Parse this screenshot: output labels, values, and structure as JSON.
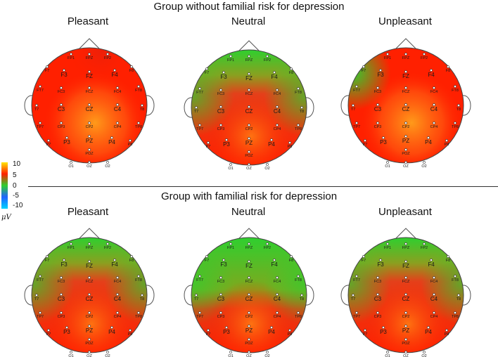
{
  "groups": [
    {
      "title": "Group without familial risk for depression",
      "maps": [
        {
          "condition": "Pleasant",
          "pattern": "red-posterior-hot"
        },
        {
          "condition": "Neutral",
          "pattern": "green-frontal-red-posterior"
        },
        {
          "condition": "Unpleasant",
          "pattern": "red-with-green-left"
        }
      ]
    },
    {
      "title": "Group with familial risk for depression",
      "maps": [
        {
          "condition": "Pleasant",
          "pattern": "green-frontal-red-posterior"
        },
        {
          "condition": "Neutral",
          "pattern": "green-frontal-large-red-posterior"
        },
        {
          "condition": "Unpleasant",
          "pattern": "green-frontal-red-posterior"
        }
      ]
    }
  ],
  "color_scale": {
    "ticks": [
      "10",
      "5",
      "0",
      "-5",
      "-10"
    ],
    "unit": "μV",
    "colors": {
      "high": "#ffe600",
      "mid_high": "#ff2000",
      "zero": "#2fcf2f",
      "mid_low": "#1f64ff",
      "low": "#00d4ff"
    }
  },
  "electrodes": [
    {
      "label": "FP1",
      "big": false
    },
    {
      "label": "FPZ",
      "big": false
    },
    {
      "label": "FP2",
      "big": false
    },
    {
      "label": "F7",
      "big": false
    },
    {
      "label": "F3",
      "big": true
    },
    {
      "label": "FZ",
      "big": true
    },
    {
      "label": "F4",
      "big": true
    },
    {
      "label": "F8",
      "big": false
    },
    {
      "label": "FC3",
      "big": false
    },
    {
      "label": "FCZ",
      "big": false
    },
    {
      "label": "FC4",
      "big": false
    },
    {
      "label": "FT7",
      "big": false
    },
    {
      "label": "FT8",
      "big": false
    },
    {
      "label": "T7",
      "big": false
    },
    {
      "label": "C3",
      "big": true
    },
    {
      "label": "CZ",
      "big": true
    },
    {
      "label": "C4",
      "big": true
    },
    {
      "label": "T8",
      "big": false
    },
    {
      "label": "CP3",
      "big": false
    },
    {
      "label": "CP2",
      "big": false
    },
    {
      "label": "CP4",
      "big": false
    },
    {
      "label": "TP7",
      "big": false
    },
    {
      "label": "TP8",
      "big": false
    },
    {
      "label": "P7",
      "big": false
    },
    {
      "label": "P3",
      "big": true
    },
    {
      "label": "PZ",
      "big": true
    },
    {
      "label": "P4",
      "big": true
    },
    {
      "label": "P8",
      "big": false
    },
    {
      "label": "POZ",
      "big": false
    },
    {
      "label": "O1",
      "big": false
    },
    {
      "label": "OZ",
      "big": false
    },
    {
      "label": "O2",
      "big": false
    }
  ]
}
